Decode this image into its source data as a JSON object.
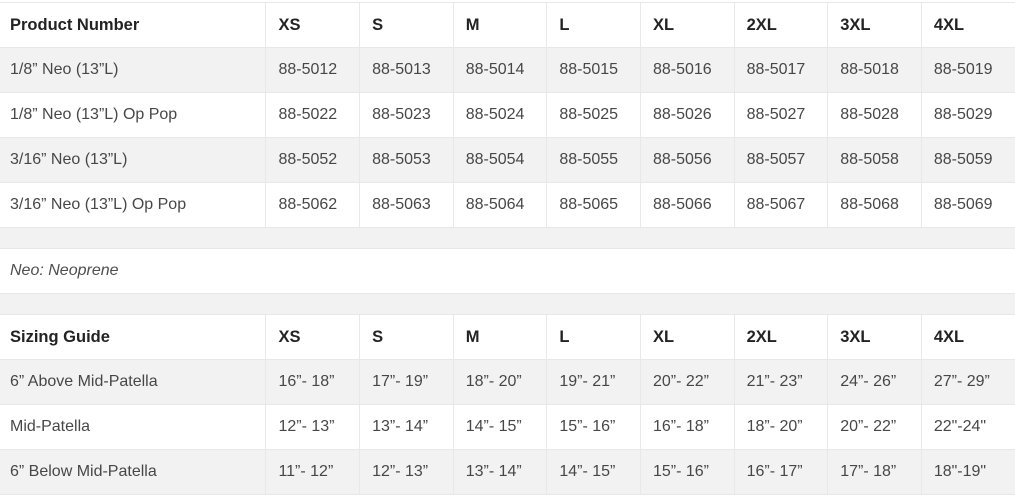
{
  "colors": {
    "stripe_row_bg": "#f2f2f2",
    "cell_border": "#e8e8e8",
    "header_text": "#232323",
    "body_text": "#474747"
  },
  "note": "Neo: Neoprene",
  "product_table": {
    "headers": [
      "Product Number",
      "XS",
      "S",
      "M",
      "L",
      "XL",
      "2XL",
      "3XL",
      "4XL"
    ],
    "rows": [
      {
        "label": "1/8” Neo (13”L)",
        "values": [
          "88-5012",
          "88-5013",
          "88-5014",
          "88-5015",
          "88-5016",
          "88-5017",
          "88-5018",
          "88-5019"
        ]
      },
      {
        "label": "1/8” Neo (13”L) Op Pop",
        "values": [
          "88-5022",
          "88-5023",
          "88-5024",
          "88-5025",
          "88-5026",
          "88-5027",
          "88-5028",
          "88-5029"
        ]
      },
      {
        "label": "3/16” Neo (13”L)",
        "values": [
          "88-5052",
          "88-5053",
          "88-5054",
          "88-5055",
          "88-5056",
          "88-5057",
          "88-5058",
          "88-5059"
        ]
      },
      {
        "label": "3/16” Neo (13”L) Op Pop",
        "values": [
          "88-5062",
          "88-5063",
          "88-5064",
          "88-5065",
          "88-5066",
          "88-5067",
          "88-5068",
          "88-5069"
        ]
      }
    ]
  },
  "sizing_table": {
    "headers": [
      "Sizing Guide",
      "XS",
      "S",
      "M",
      "L",
      "XL",
      "2XL",
      "3XL",
      "4XL"
    ],
    "rows": [
      {
        "label": "6” Above Mid-Patella",
        "values": [
          "16”- 18”",
          "17”- 19”",
          "18”- 20”",
          "19”- 21”",
          "20”- 22”",
          "21”- 23”",
          "24”- 26”",
          "27”- 29”"
        ]
      },
      {
        "label": "Mid-Patella",
        "values": [
          "12”- 13”",
          "13”- 14”",
          "14”- 15”",
          "15”- 16”",
          "16”- 18”",
          "18”- 20”",
          "20”- 22”",
          "22\"-24\""
        ]
      },
      {
        "label": "6” Below Mid-Patella",
        "values": [
          "11”- 12”",
          "12”- 13”",
          "13”- 14”",
          "14”- 15”",
          "15”- 16”",
          "16”- 17”",
          "17”- 18”",
          "18\"-19\""
        ]
      }
    ]
  }
}
